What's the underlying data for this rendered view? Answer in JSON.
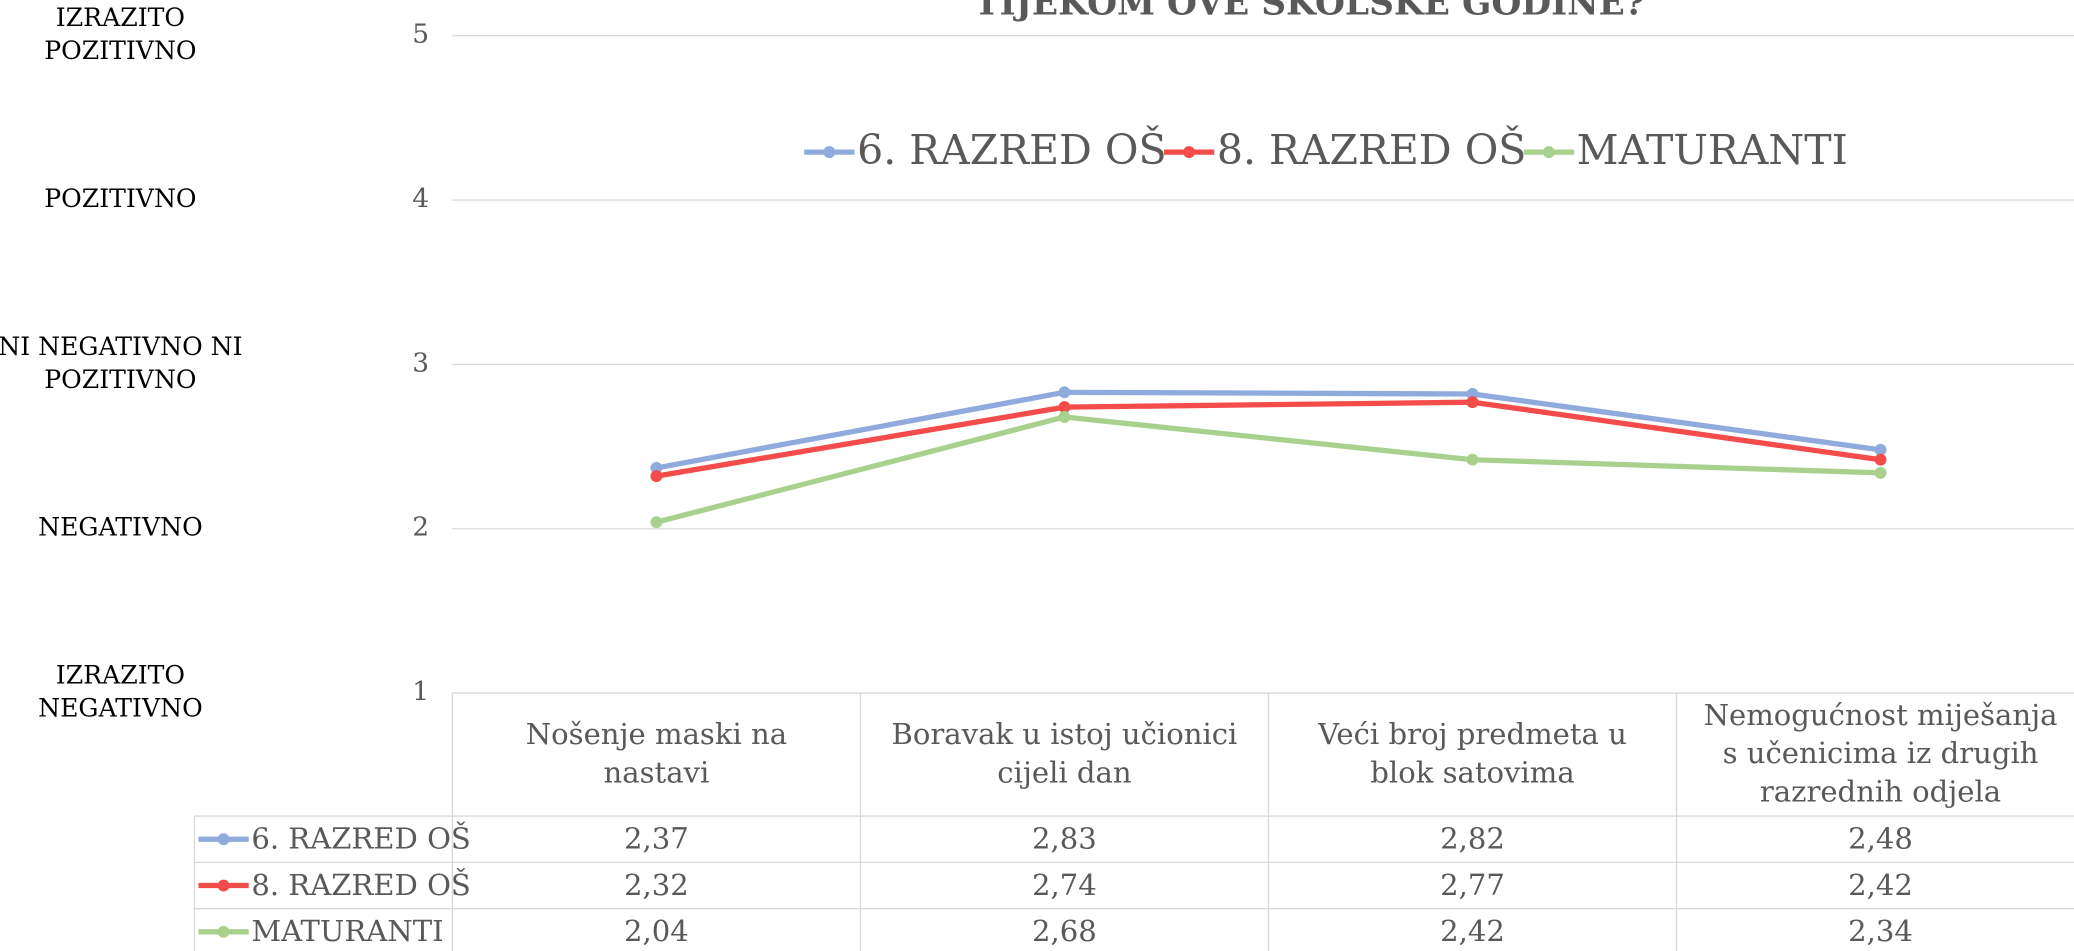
{
  "chart_data": {
    "type": "line",
    "title": "TIJEKOM OVE ŠKOLSKE GODINE?",
    "categories": [
      "Nošenje maski na\nnastavi",
      "Boravak u istoj učionici\ncijeli dan",
      "Veći broj predmeta u\nblok satovima",
      "Nemogućnost miješanja\ns učenicima iz drugih\nrazrednih odjela"
    ],
    "series": [
      {
        "name": "6. RAZRED OŠ",
        "color": "#8faadc",
        "values": [
          2.37,
          2.83,
          2.82,
          2.48
        ],
        "value_labels": [
          "2,37",
          "2,83",
          "2,82",
          "2,48"
        ]
      },
      {
        "name": "8. RAZRED OŠ",
        "color": "#f44b4b",
        "values": [
          2.32,
          2.74,
          2.77,
          2.42
        ],
        "value_labels": [
          "2,32",
          "2,74",
          "2,77",
          "2,42"
        ]
      },
      {
        "name": "MATURANTI",
        "color": "#a9d18e",
        "values": [
          2.04,
          2.68,
          2.42,
          2.34
        ],
        "value_labels": [
          "2,04",
          "2,68",
          "2,42",
          "2,34"
        ]
      }
    ],
    "ylim": [
      1,
      5
    ],
    "yticks": [
      1,
      2,
      3,
      4,
      5
    ],
    "y_category_labels": [
      "IZRAZITO\nNEGATIVNO",
      "NEGATIVNO",
      "NI NEGATIVNO NI\nPOZITIVNO",
      "POZITIVNO",
      "IZRAZITO\nPOZITIVNO"
    ],
    "grid": true,
    "legend": "top"
  }
}
